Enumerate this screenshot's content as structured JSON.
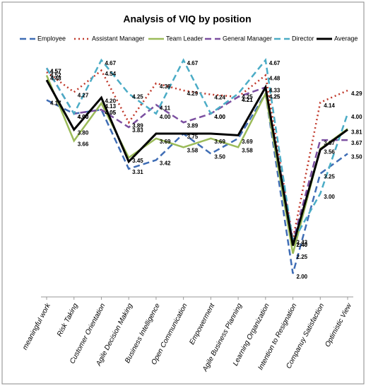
{
  "chart_data": {
    "type": "line",
    "title": "Analysis of VIQ by position",
    "categories": [
      "meaningful work",
      "Risk Taking",
      "Customer Orientation",
      "Agile Decision Making",
      "Business Intelligence",
      "Open Communication",
      "Empowerment",
      "Agile Business Planning",
      "Learning Organization",
      "Intention to Resignation",
      "Companuy Satisfaction",
      "Optimistic View"
    ],
    "series": [
      {
        "name": "Employee",
        "color": "#3f6db5",
        "dash": "dashed",
        "values": [
          4.17,
          4.0,
          4.05,
          3.31,
          3.42,
          3.75,
          3.5,
          3.69,
          4.25,
          2.0,
          3.25,
          3.5
        ],
        "value_labels": [
          "4.17",
          "4.00",
          "4.05",
          "3.31",
          "3.42",
          "3.75",
          "3.50",
          "3.69",
          "4.25",
          "2.00",
          "3.25",
          "3.50"
        ]
      },
      {
        "name": "Assistant Manager",
        "color": "#c0392b",
        "dash": "dotted",
        "values": [
          4.52,
          4.27,
          4.54,
          3.89,
          4.38,
          4.29,
          4.24,
          4.21,
          4.48,
          2.43,
          4.14,
          4.29
        ],
        "value_labels": [
          "4.52",
          "4.27",
          "4.54",
          "3.89",
          "4.38",
          "4.29",
          "4.24",
          "4.21",
          "4.48",
          "2.43",
          "4.14",
          "4.29"
        ]
      },
      {
        "name": "Team Leader",
        "color": "#9bbb59",
        "dash": "solid",
        "values": [
          4.48,
          3.66,
          4.13,
          3.45,
          3.69,
          3.58,
          3.69,
          3.58,
          4.25,
          2.25,
          3.56,
          3.81
        ],
        "value_labels": [
          "4.48",
          "3.66",
          "4.13",
          "3.45",
          "3.69",
          "3.58",
          "3.69",
          "3.58",
          "4.25",
          "2.25",
          "3.56",
          "3.81"
        ]
      },
      {
        "name": "General Manager",
        "color": "#7b4fa0",
        "dash": "dashed",
        "values": [
          4.57,
          4.0,
          4.05,
          3.83,
          4.11,
          3.89,
          4.0,
          4.21,
          4.33,
          2.4,
          3.67,
          3.67
        ],
        "value_labels": [
          "4.57",
          "4.00",
          "4.05",
          "3.83",
          "4.11",
          "3.89",
          "4.00",
          "4.21",
          "4.33",
          "2.40",
          "3.67",
          "3.67"
        ]
      },
      {
        "name": "Director",
        "color": "#4bacc6",
        "dash": "dashed",
        "values": [
          4.57,
          4.0,
          4.67,
          4.25,
          4.0,
          4.67,
          4.0,
          4.25,
          4.67,
          2.4,
          3.0,
          4.0
        ],
        "value_labels": [
          "4.57",
          "4.00",
          "4.67",
          "4.25",
          "4.00",
          "4.67",
          "4.00",
          "4.25",
          "4.67",
          "2.40",
          "3.00",
          "4.00"
        ]
      },
      {
        "name": "Average",
        "color": "#000000",
        "dash": "solid",
        "values": [
          4.42,
          3.8,
          4.2,
          3.4,
          3.75,
          3.75,
          3.75,
          3.73,
          4.33,
          2.35,
          3.55,
          3.8
        ],
        "value_labels": [
          null,
          "3.80",
          "4.20",
          null,
          null,
          null,
          null,
          null,
          null,
          null,
          null,
          null
        ]
      }
    ]
  }
}
